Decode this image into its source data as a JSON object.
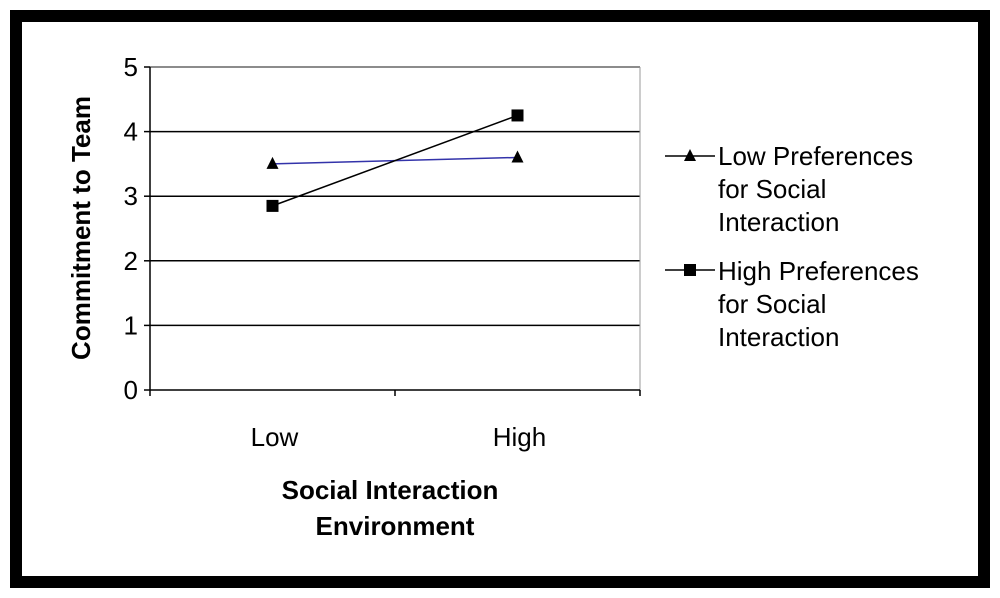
{
  "chart_data": {
    "type": "line",
    "title": "",
    "categories": [
      "Low",
      "High"
    ],
    "xlabel_lines": [
      "Social Interaction",
      "Environment"
    ],
    "ylabel": "Commitment to Team",
    "ylim": [
      0,
      5
    ],
    "yticks": [
      "0",
      "1",
      "2",
      "3",
      "4",
      "5"
    ],
    "grid": true,
    "legend_position": "right",
    "series": [
      {
        "name": "Low Preferences for Social Interaction",
        "legend_lines": [
          "Low Preferences",
          "for Social",
          "Interaction"
        ],
        "values": [
          3.5,
          3.6
        ],
        "marker": "triangle",
        "color": "#3333aa"
      },
      {
        "name": "High Preferences for Social Interaction",
        "legend_lines": [
          "High Preferences",
          "for Social",
          "Interaction"
        ],
        "values": [
          2.85,
          4.25
        ],
        "marker": "square",
        "color": "#000000"
      }
    ]
  }
}
